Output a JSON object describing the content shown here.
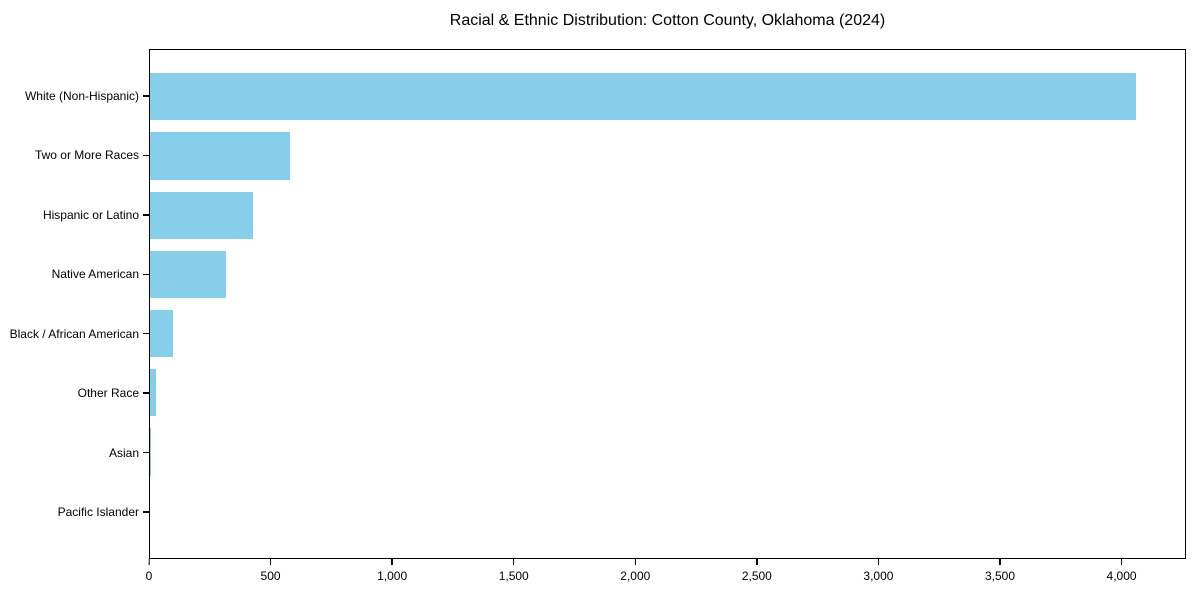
{
  "chart_data": {
    "type": "bar",
    "orientation": "horizontal",
    "title": "Racial & Ethnic Distribution: Cotton County, Oklahoma (2024)",
    "categories": [
      "White (Non-Hispanic)",
      "Two or More Races",
      "Hispanic or Latino",
      "Native American",
      "Black / African American",
      "Other Race",
      "Asian",
      "Pacific Islander"
    ],
    "values": [
      4062,
      578,
      423,
      312,
      95,
      23,
      3,
      0
    ],
    "xlabel": "",
    "ylabel": "",
    "xlim": [
      0,
      4265
    ],
    "x_ticks": [
      0,
      500,
      1000,
      1500,
      2000,
      2500,
      3000,
      3500,
      4000
    ],
    "x_tick_labels": [
      "0",
      "500",
      "1,000",
      "1,500",
      "2,000",
      "2,500",
      "3,000",
      "3,500",
      "4,000"
    ],
    "bar_color": "#87CEEB",
    "axis_color": "#000000",
    "grid": false,
    "legend": null
  }
}
